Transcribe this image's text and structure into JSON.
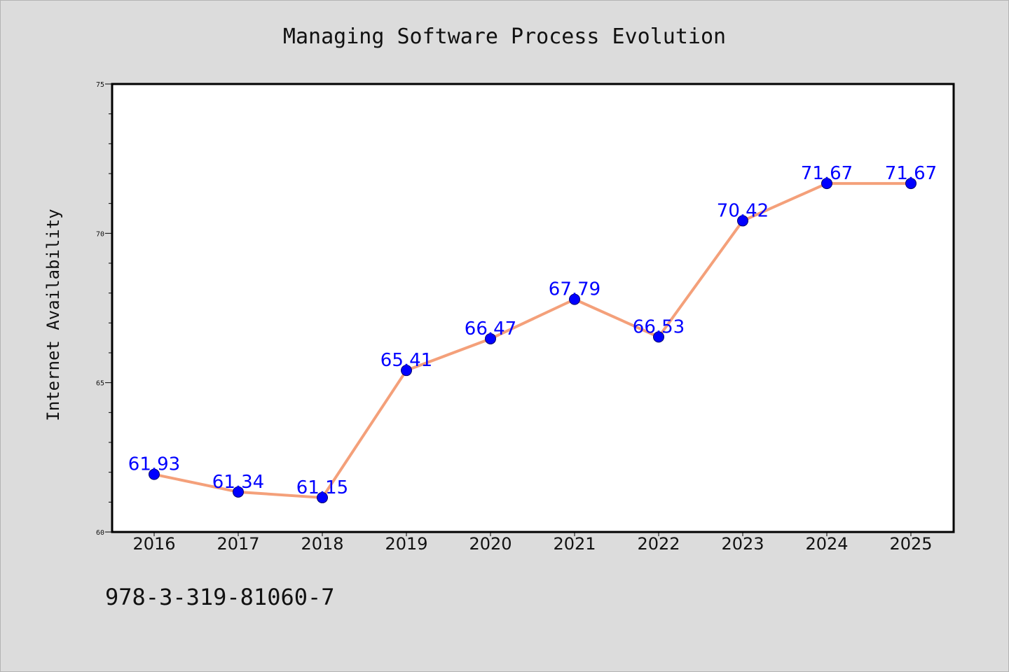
{
  "chart_data": {
    "type": "line",
    "title": "Managing Software Process Evolution",
    "xlabel": "",
    "ylabel": "Internet Availability",
    "categories": [
      "2016",
      "2017",
      "2018",
      "2019",
      "2020",
      "2021",
      "2022",
      "2023",
      "2024",
      "2025"
    ],
    "series": [
      {
        "values": [
          61.93,
          61.34,
          61.15,
          65.41,
          66.47,
          67.79,
          66.53,
          70.42,
          71.67,
          71.67
        ],
        "labels": [
          "61.93",
          "61.34",
          "61.15",
          "65.41",
          "66.47",
          "67.79",
          "66.53",
          "70.42",
          "71.67",
          "71.67"
        ]
      }
    ],
    "ylim": [
      60,
      75
    ],
    "yticks": [
      "60",
      "65",
      "70",
      "75"
    ],
    "grid": false,
    "legend": "none"
  },
  "footer_text": "978-3-319-81060-7",
  "colors": {
    "background": "#dcdcdc",
    "plot_background": "#ffffff",
    "line": "#f4a07a",
    "marker": "#0000ff",
    "data_label": "#0000ff"
  }
}
